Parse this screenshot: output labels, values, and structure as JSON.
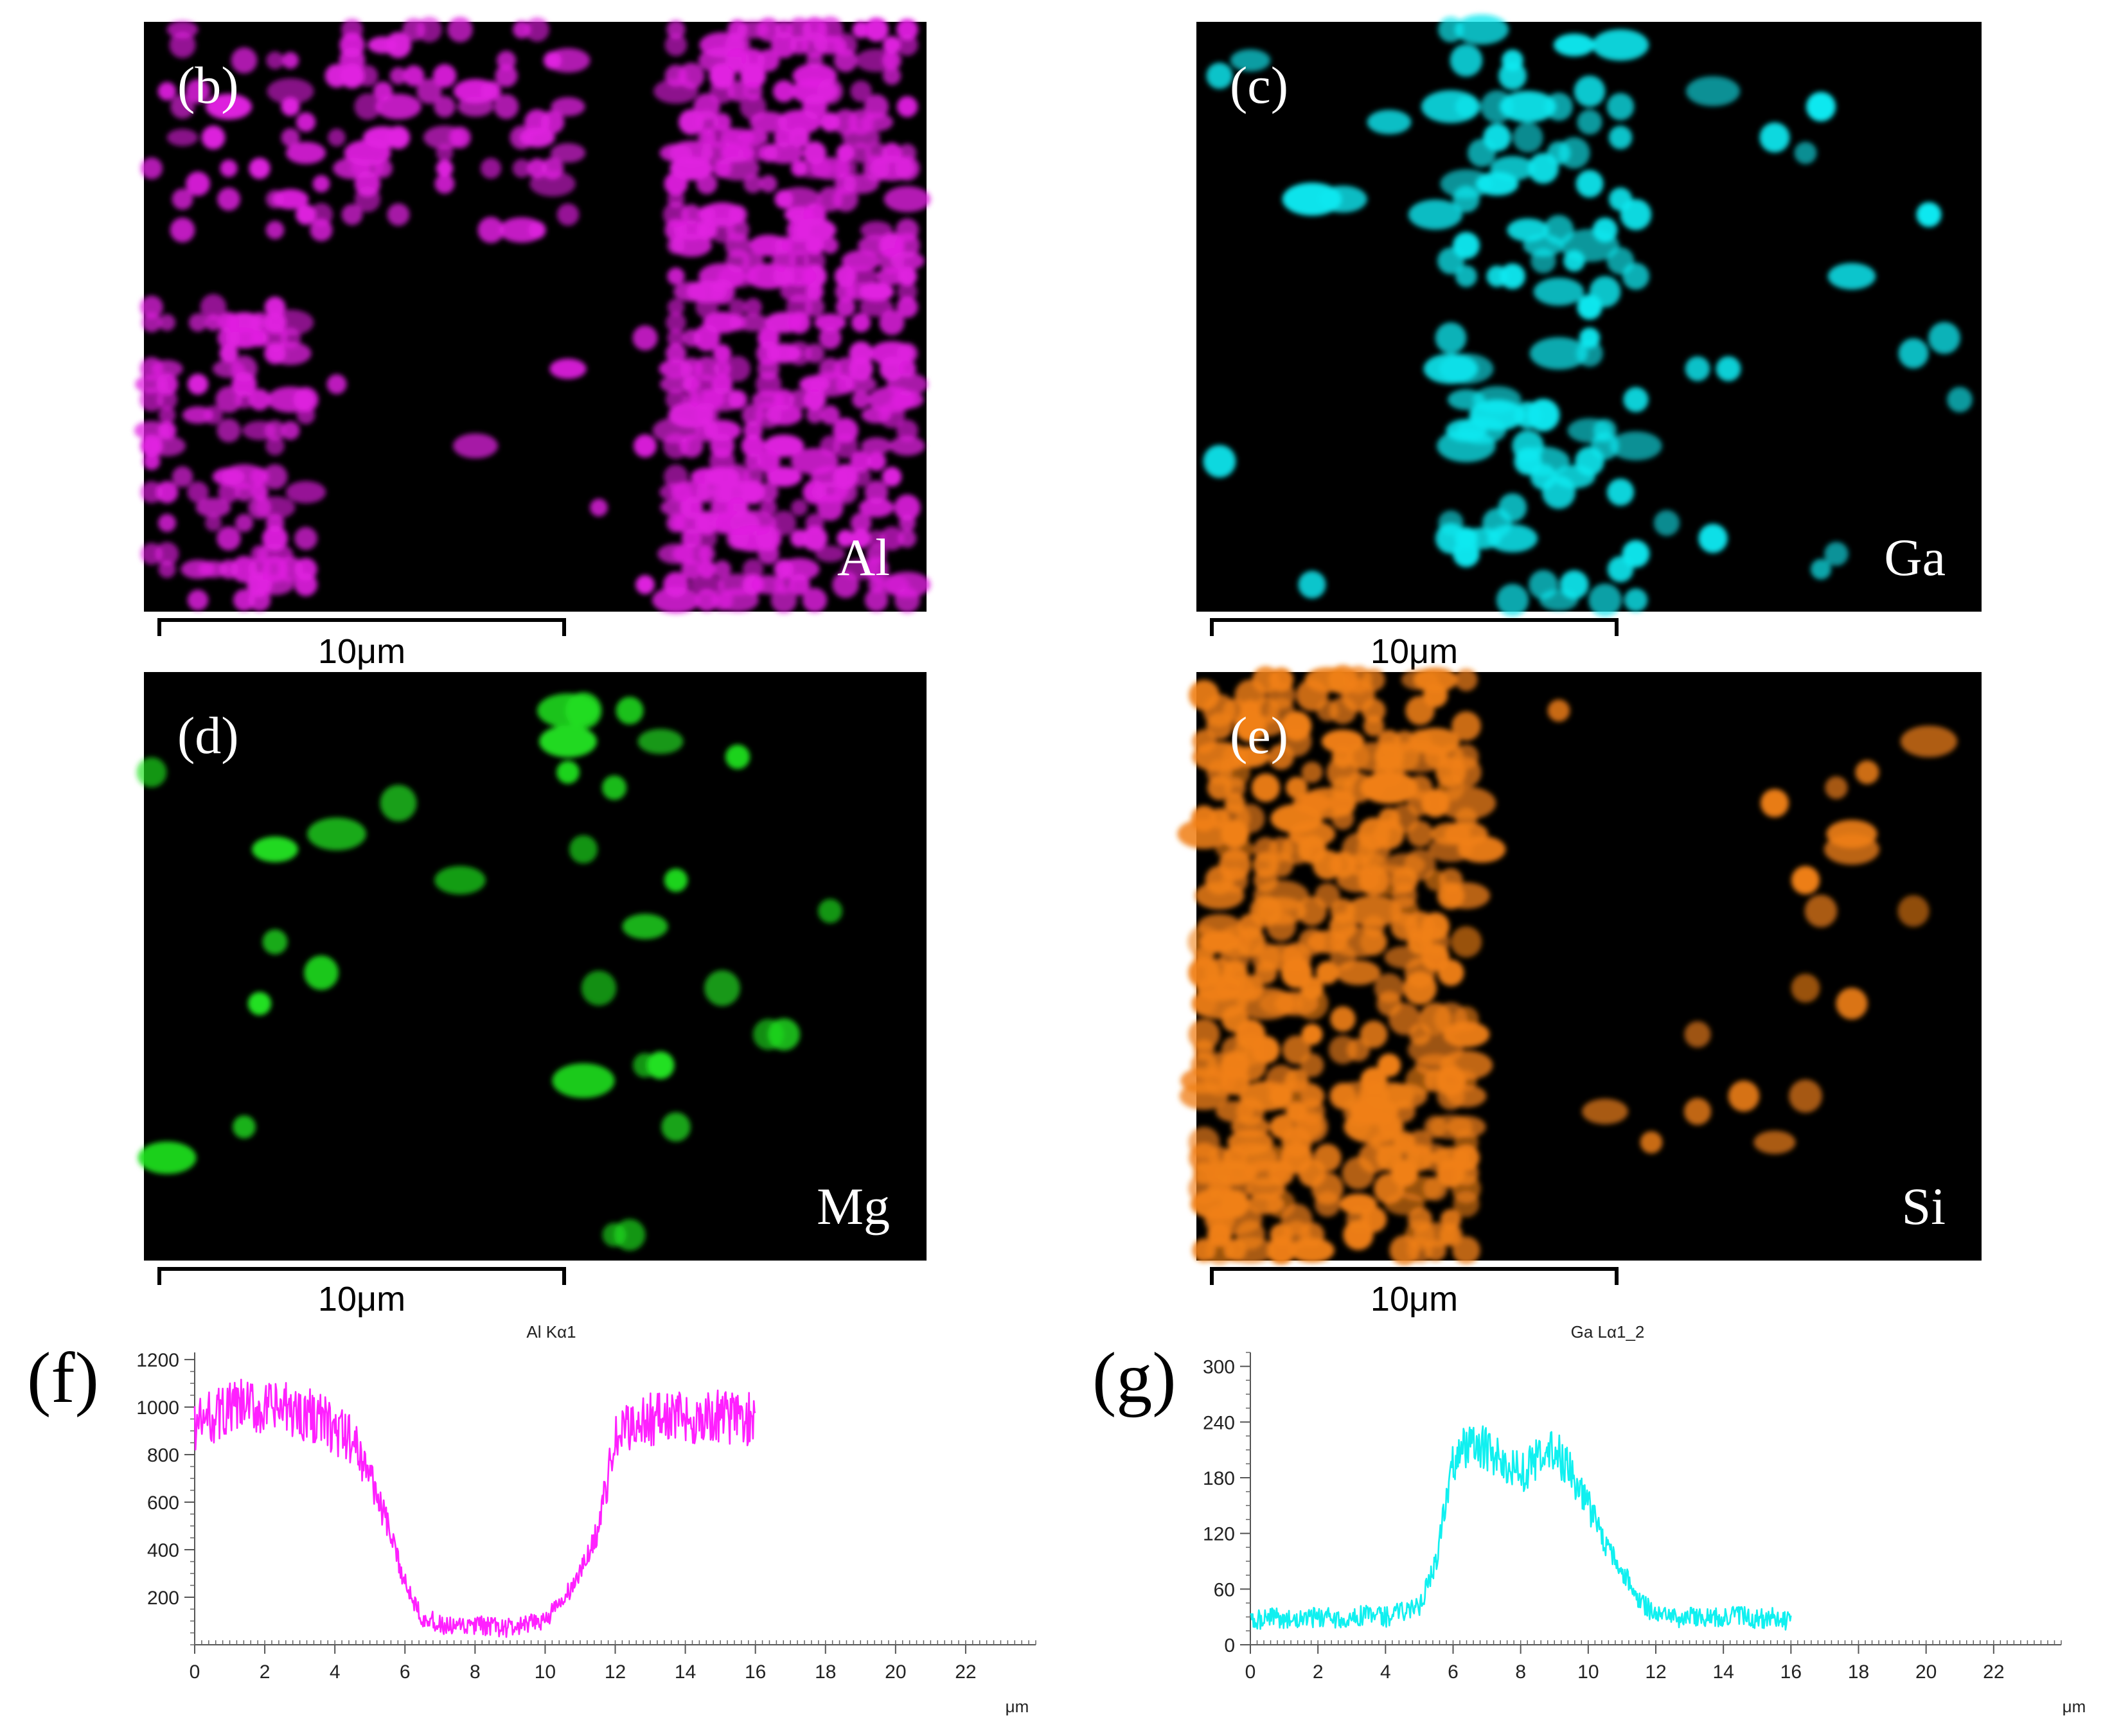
{
  "figure": {
    "panels": [
      {
        "id": "b",
        "label": "(b)",
        "element": "Al",
        "color": "#e020e0",
        "scale": "10μm"
      },
      {
        "id": "c",
        "label": "(c)",
        "element": "Ga",
        "color": "#10e8f0",
        "scale": "10μm"
      },
      {
        "id": "d",
        "label": "(d)",
        "element": "Mg",
        "color": "#20e020",
        "scale": "10μm"
      },
      {
        "id": "e",
        "label": "(e)",
        "element": "Si",
        "color": "#f08018",
        "scale": "10μm"
      }
    ]
  },
  "chart_data": [
    {
      "type": "line",
      "panel_label": "(f)",
      "title": "Al Kα1",
      "xlabel": "μm",
      "ylabel": "",
      "color": "#ff20ff",
      "xlim": [
        0,
        24
      ],
      "ylim": [
        0,
        1230
      ],
      "xticks": [
        0,
        2,
        4,
        6,
        8,
        10,
        12,
        14,
        16,
        18,
        20,
        22
      ],
      "yticks": [
        200,
        400,
        600,
        800,
        1000,
        1200
      ],
      "series": [
        {
          "name": "Al Kα1",
          "x": [
            0,
            0.5,
            1,
            1.5,
            2,
            2.5,
            3,
            3.5,
            4,
            4.5,
            5,
            5.5,
            6,
            6.5,
            7,
            7.5,
            8,
            8.5,
            9,
            9.5,
            10,
            10.5,
            11,
            11.5,
            12,
            12.5,
            13,
            13.5,
            14,
            14.5,
            15,
            15.5,
            16
          ],
          "values": [
            920,
            960,
            990,
            1000,
            985,
            990,
            975,
            960,
            900,
            860,
            720,
            500,
            260,
            120,
            80,
            70,
            80,
            75,
            70,
            80,
            110,
            180,
            300,
            480,
            860,
            930,
            950,
            960,
            955,
            950,
            960,
            960,
            940
          ]
        }
      ]
    },
    {
      "type": "line",
      "panel_label": "(g)",
      "title": "Ga Lα1_2",
      "xlabel": "μm",
      "ylabel": "",
      "color": "#10f0f0",
      "xlim": [
        0,
        24
      ],
      "ylim": [
        0,
        315
      ],
      "xticks": [
        0,
        2,
        4,
        6,
        8,
        10,
        12,
        14,
        16,
        18,
        20,
        22
      ],
      "yticks": [
        0,
        60,
        120,
        180,
        240,
        300
      ],
      "series": [
        {
          "name": "Ga Lα1_2",
          "x": [
            0,
            0.5,
            1,
            1.5,
            2,
            2.5,
            3,
            3.5,
            4,
            4.5,
            5,
            5.5,
            6,
            6.5,
            7,
            7.5,
            8,
            8.5,
            9,
            9.5,
            10,
            10.5,
            11,
            11.5,
            12,
            12.5,
            13,
            13.5,
            14,
            14.5,
            15,
            15.5,
            16
          ],
          "values": [
            25,
            30,
            28,
            26,
            30,
            28,
            30,
            32,
            30,
            35,
            40,
            90,
            200,
            220,
            210,
            195,
            185,
            200,
            210,
            185,
            150,
            110,
            80,
            50,
            30,
            28,
            30,
            28,
            30,
            32,
            28,
            30,
            25
          ]
        }
      ]
    }
  ]
}
